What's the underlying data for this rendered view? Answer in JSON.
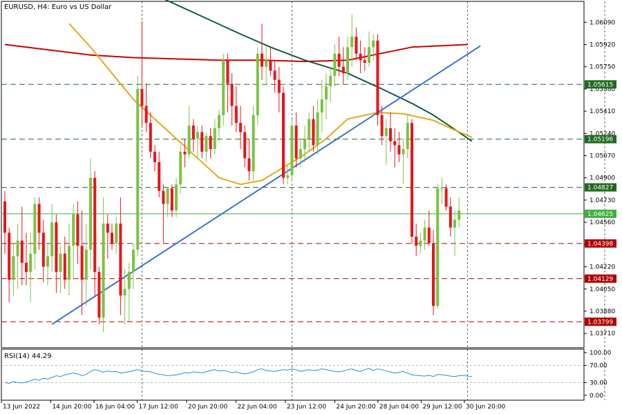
{
  "chart_data": {
    "type": "candlestick",
    "title": "EURUSD, H4:  Euro vs US Dollar",
    "price_range": [
      1.036,
      1.0625
    ],
    "price_ticks": [
      "1.06090",
      "1.05920",
      "1.05750",
      "1.05580",
      "1.05410",
      "1.05240",
      "1.05070",
      "1.04900",
      "1.04730",
      "1.04560",
      "1.04390",
      "1.04220",
      "1.04050",
      "1.03880",
      "1.03710"
    ],
    "x_ticks": [
      "13 Jun 2022",
      "14 Jun 20:00",
      "16 Jun 04:00",
      "17 Jun 12:00",
      "20 Jun 20:00",
      "22 Jun 04:00",
      "23 Jun 12:00",
      "24 Jun 20:00",
      "28 Jun 04:00",
      "29 Jun 12:00",
      "30 Jun 20:00"
    ],
    "level_lines": [
      {
        "label": "1.05615",
        "value": 1.05615,
        "style": "dashed",
        "color": "#1f6b1f"
      },
      {
        "label": "1.05196",
        "value": 1.05196,
        "style": "dashed",
        "color": "#1f6b1f"
      },
      {
        "label": "1.04827",
        "value": 1.04827,
        "style": "dashed",
        "color": "#1f6b1f"
      },
      {
        "label": "1.04625",
        "value": 1.04625,
        "style": "solid",
        "color": "#3fae3f"
      },
      {
        "label": "1.04398",
        "value": 1.04398,
        "style": "dashed",
        "color": "#b00000"
      },
      {
        "label": "1.04129",
        "value": 1.04129,
        "style": "dashed",
        "color": "#b00000"
      },
      {
        "label": "1.03799",
        "value": 1.03799,
        "style": "dashed",
        "color": "#b00000"
      }
    ],
    "candles": [
      {
        "o": 1.0472,
        "h": 1.048,
        "l": 1.0432,
        "c": 1.0448
      },
      {
        "o": 1.0448,
        "h": 1.0452,
        "l": 1.0395,
        "c": 1.0412
      },
      {
        "o": 1.0412,
        "h": 1.044,
        "l": 1.04,
        "c": 1.043
      },
      {
        "o": 1.043,
        "h": 1.0455,
        "l": 1.0405,
        "c": 1.0442
      },
      {
        "o": 1.0442,
        "h": 1.0468,
        "l": 1.0408,
        "c": 1.0425
      },
      {
        "o": 1.0425,
        "h": 1.0448,
        "l": 1.0408,
        "c": 1.0418
      },
      {
        "o": 1.0418,
        "h": 1.0448,
        "l": 1.0395,
        "c": 1.0432
      },
      {
        "o": 1.0432,
        "h": 1.0475,
        "l": 1.042,
        "c": 1.047
      },
      {
        "o": 1.047,
        "h": 1.0475,
        "l": 1.0435,
        "c": 1.0448
      },
      {
        "o": 1.0448,
        "h": 1.0458,
        "l": 1.041,
        "c": 1.0422
      },
      {
        "o": 1.0422,
        "h": 1.044,
        "l": 1.0408,
        "c": 1.043
      },
      {
        "o": 1.043,
        "h": 1.047,
        "l": 1.0418,
        "c": 1.0456
      },
      {
        "o": 1.0456,
        "h": 1.0462,
        "l": 1.0402,
        "c": 1.0418
      },
      {
        "o": 1.0418,
        "h": 1.0438,
        "l": 1.0402,
        "c": 1.0432
      },
      {
        "o": 1.0432,
        "h": 1.0445,
        "l": 1.0405,
        "c": 1.0412
      },
      {
        "o": 1.0412,
        "h": 1.0455,
        "l": 1.04,
        "c": 1.0438
      },
      {
        "o": 1.0438,
        "h": 1.047,
        "l": 1.0412,
        "c": 1.0462
      },
      {
        "o": 1.0462,
        "h": 1.0472,
        "l": 1.0424,
        "c": 1.0438
      },
      {
        "o": 1.0438,
        "h": 1.0465,
        "l": 1.0385,
        "c": 1.0412
      },
      {
        "o": 1.0412,
        "h": 1.0455,
        "l": 1.0392,
        "c": 1.0435
      },
      {
        "o": 1.0435,
        "h": 1.0505,
        "l": 1.042,
        "c": 1.049
      },
      {
        "o": 1.049,
        "h": 1.0495,
        "l": 1.04,
        "c": 1.0418
      },
      {
        "o": 1.0418,
        "h": 1.0422,
        "l": 1.0378,
        "c": 1.0383
      },
      {
        "o": 1.0383,
        "h": 1.0475,
        "l": 1.0372,
        "c": 1.0455
      },
      {
        "o": 1.0455,
        "h": 1.0462,
        "l": 1.0428,
        "c": 1.0448
      },
      {
        "o": 1.0448,
        "h": 1.0455,
        "l": 1.0435,
        "c": 1.044
      },
      {
        "o": 1.044,
        "h": 1.046,
        "l": 1.0432,
        "c": 1.0455
      },
      {
        "o": 1.0455,
        "h": 1.0475,
        "l": 1.0385,
        "c": 1.04
      },
      {
        "o": 1.04,
        "h": 1.042,
        "l": 1.0378,
        "c": 1.0405
      },
      {
        "o": 1.0405,
        "h": 1.0425,
        "l": 1.038,
        "c": 1.0418
      },
      {
        "o": 1.0418,
        "h": 1.044,
        "l": 1.0405,
        "c": 1.0435
      },
      {
        "o": 1.0435,
        "h": 1.0568,
        "l": 1.043,
        "c": 1.0558
      },
      {
        "o": 1.0558,
        "h": 1.061,
        "l": 1.053,
        "c": 1.0545
      },
      {
        "o": 1.0545,
        "h": 1.0562,
        "l": 1.0525,
        "c": 1.0532
      },
      {
        "o": 1.0532,
        "h": 1.054,
        "l": 1.0505,
        "c": 1.051
      },
      {
        "o": 1.051,
        "h": 1.0515,
        "l": 1.0495,
        "c": 1.0502
      },
      {
        "o": 1.0502,
        "h": 1.051,
        "l": 1.0475,
        "c": 1.048
      },
      {
        "o": 1.048,
        "h": 1.0485,
        "l": 1.044,
        "c": 1.047
      },
      {
        "o": 1.047,
        "h": 1.0482,
        "l": 1.046,
        "c": 1.0482
      },
      {
        "o": 1.0482,
        "h": 1.0485,
        "l": 1.046,
        "c": 1.0465
      },
      {
        "o": 1.0465,
        "h": 1.049,
        "l": 1.046,
        "c": 1.0485
      },
      {
        "o": 1.0485,
        "h": 1.0515,
        "l": 1.0478,
        "c": 1.051
      },
      {
        "o": 1.051,
        "h": 1.052,
        "l": 1.0498,
        "c": 1.0508
      },
      {
        "o": 1.0508,
        "h": 1.0545,
        "l": 1.0505,
        "c": 1.053
      },
      {
        "o": 1.053,
        "h": 1.0535,
        "l": 1.051,
        "c": 1.052
      },
      {
        "o": 1.052,
        "h": 1.053,
        "l": 1.0505,
        "c": 1.0525
      },
      {
        "o": 1.0525,
        "h": 1.053,
        "l": 1.0505,
        "c": 1.051
      },
      {
        "o": 1.051,
        "h": 1.0525,
        "l": 1.0502,
        "c": 1.0522
      },
      {
        "o": 1.0522,
        "h": 1.0528,
        "l": 1.0505,
        "c": 1.0512
      },
      {
        "o": 1.0512,
        "h": 1.0535,
        "l": 1.0508,
        "c": 1.0528
      },
      {
        "o": 1.0528,
        "h": 1.0542,
        "l": 1.0518,
        "c": 1.0538
      },
      {
        "o": 1.0538,
        "h": 1.0585,
        "l": 1.053,
        "c": 1.058
      },
      {
        "o": 1.058,
        "h": 1.0585,
        "l": 1.054,
        "c": 1.0562
      },
      {
        "o": 1.0562,
        "h": 1.057,
        "l": 1.053,
        "c": 1.0545
      },
      {
        "o": 1.0545,
        "h": 1.056,
        "l": 1.0525,
        "c": 1.0532
      },
      {
        "o": 1.0532,
        "h": 1.0545,
        "l": 1.0512,
        "c": 1.0525
      },
      {
        "o": 1.0525,
        "h": 1.053,
        "l": 1.0498,
        "c": 1.0505
      },
      {
        "o": 1.0505,
        "h": 1.052,
        "l": 1.0488,
        "c": 1.0495
      },
      {
        "o": 1.0495,
        "h": 1.0545,
        "l": 1.0488,
        "c": 1.0538
      },
      {
        "o": 1.0538,
        "h": 1.059,
        "l": 1.053,
        "c": 1.0585
      },
      {
        "o": 1.0585,
        "h": 1.0608,
        "l": 1.0565,
        "c": 1.0575
      },
      {
        "o": 1.0575,
        "h": 1.059,
        "l": 1.0562,
        "c": 1.058
      },
      {
        "o": 1.058,
        "h": 1.059,
        "l": 1.0568,
        "c": 1.0572
      },
      {
        "o": 1.0572,
        "h": 1.058,
        "l": 1.0555,
        "c": 1.0565
      },
      {
        "o": 1.0565,
        "h": 1.0575,
        "l": 1.054,
        "c": 1.0555
      },
      {
        "o": 1.0555,
        "h": 1.056,
        "l": 1.0485,
        "c": 1.049
      },
      {
        "o": 1.049,
        "h": 1.05,
        "l": 1.0485,
        "c": 1.0492
      },
      {
        "o": 1.0492,
        "h": 1.0535,
        "l": 1.0488,
        "c": 1.053
      },
      {
        "o": 1.053,
        "h": 1.054,
        "l": 1.0498,
        "c": 1.0505
      },
      {
        "o": 1.0505,
        "h": 1.052,
        "l": 1.0498,
        "c": 1.0512
      },
      {
        "o": 1.0512,
        "h": 1.053,
        "l": 1.0502,
        "c": 1.052
      },
      {
        "o": 1.052,
        "h": 1.054,
        "l": 1.051,
        "c": 1.0535
      },
      {
        "o": 1.0535,
        "h": 1.0545,
        "l": 1.051,
        "c": 1.0515
      },
      {
        "o": 1.0515,
        "h": 1.055,
        "l": 1.0508,
        "c": 1.054
      },
      {
        "o": 1.054,
        "h": 1.0565,
        "l": 1.0525,
        "c": 1.055
      },
      {
        "o": 1.055,
        "h": 1.057,
        "l": 1.0535,
        "c": 1.056
      },
      {
        "o": 1.056,
        "h": 1.0575,
        "l": 1.0548,
        "c": 1.0568
      },
      {
        "o": 1.0568,
        "h": 1.0592,
        "l": 1.056,
        "c": 1.0585
      },
      {
        "o": 1.0585,
        "h": 1.0598,
        "l": 1.0568,
        "c": 1.0575
      },
      {
        "o": 1.0575,
        "h": 1.059,
        "l": 1.0562,
        "c": 1.057
      },
      {
        "o": 1.057,
        "h": 1.0598,
        "l": 1.0565,
        "c": 1.059
      },
      {
        "o": 1.059,
        "h": 1.0615,
        "l": 1.0575,
        "c": 1.0598
      },
      {
        "o": 1.0598,
        "h": 1.0605,
        "l": 1.058,
        "c": 1.0585
      },
      {
        "o": 1.0585,
        "h": 1.0595,
        "l": 1.057,
        "c": 1.058
      },
      {
        "o": 1.058,
        "h": 1.059,
        "l": 1.0572,
        "c": 1.0578
      },
      {
        "o": 1.0578,
        "h": 1.0602,
        "l": 1.0575,
        "c": 1.059
      },
      {
        "o": 1.059,
        "h": 1.06,
        "l": 1.058,
        "c": 1.0595
      },
      {
        "o": 1.0595,
        "h": 1.06,
        "l": 1.053,
        "c": 1.0538
      },
      {
        "o": 1.0538,
        "h": 1.0545,
        "l": 1.0515,
        "c": 1.0522
      },
      {
        "o": 1.0522,
        "h": 1.0535,
        "l": 1.05,
        "c": 1.0528
      },
      {
        "o": 1.0528,
        "h": 1.054,
        "l": 1.051,
        "c": 1.0518
      },
      {
        "o": 1.0518,
        "h": 1.0528,
        "l": 1.0498,
        "c": 1.0515
      },
      {
        "o": 1.0515,
        "h": 1.0525,
        "l": 1.0502,
        "c": 1.0508
      },
      {
        "o": 1.0508,
        "h": 1.052,
        "l": 1.0485,
        "c": 1.0512
      },
      {
        "o": 1.0512,
        "h": 1.0538,
        "l": 1.0505,
        "c": 1.0532
      },
      {
        "o": 1.0532,
        "h": 1.0535,
        "l": 1.044,
        "c": 1.0445
      },
      {
        "o": 1.0445,
        "h": 1.0455,
        "l": 1.043,
        "c": 1.0438
      },
      {
        "o": 1.0438,
        "h": 1.0448,
        "l": 1.0432,
        "c": 1.0442
      },
      {
        "o": 1.0442,
        "h": 1.0458,
        "l": 1.0435,
        "c": 1.0452
      },
      {
        "o": 1.0452,
        "h": 1.0465,
        "l": 1.0438,
        "c": 1.044
      },
      {
        "o": 1.044,
        "h": 1.045,
        "l": 1.0385,
        "c": 1.0392
      },
      {
        "o": 1.0392,
        "h": 1.0485,
        "l": 1.039,
        "c": 1.0482
      },
      {
        "o": 1.0482,
        "h": 1.049,
        "l": 1.047,
        "c": 1.0482
      },
      {
        "o": 1.0482,
        "h": 1.0485,
        "l": 1.0465,
        "c": 1.0468
      },
      {
        "o": 1.0468,
        "h": 1.0475,
        "l": 1.0445,
        "c": 1.0452
      },
      {
        "o": 1.0452,
        "h": 1.0465,
        "l": 1.043,
        "c": 1.0458
      },
      {
        "o": 1.0458,
        "h": 1.0475,
        "l": 1.0452,
        "c": 1.0465
      }
    ],
    "moving_averages": [
      {
        "color": "#cc0000",
        "values": [
          [
            0,
            1.0592
          ],
          [
            10,
            1.0588
          ],
          [
            20,
            1.0584
          ],
          [
            30,
            1.0582
          ],
          [
            40,
            1.0581
          ],
          [
            50,
            1.058
          ],
          [
            60,
            1.058
          ],
          [
            70,
            1.0579
          ],
          [
            80,
            1.058
          ],
          [
            86,
            1.0584
          ],
          [
            95,
            1.059
          ],
          [
            108,
            1.0592
          ]
        ]
      },
      {
        "color": "#0b5d3b",
        "values": [
          [
            35,
            1.063
          ],
          [
            45,
            1.0615
          ],
          [
            55,
            1.06
          ],
          [
            62,
            1.059
          ],
          [
            70,
            1.058
          ],
          [
            80,
            1.057
          ],
          [
            88,
            1.0558
          ],
          [
            95,
            1.0547
          ],
          [
            100,
            1.0538
          ],
          [
            105,
            1.0527
          ],
          [
            109,
            1.0518
          ]
        ]
      },
      {
        "color": "#e6a817",
        "values": [
          [
            15,
            1.0608
          ],
          [
            20,
            1.059
          ],
          [
            25,
            1.057
          ],
          [
            30,
            1.055
          ],
          [
            35,
            1.0535
          ],
          [
            40,
            1.052
          ],
          [
            45,
            1.0505
          ],
          [
            50,
            1.049
          ],
          [
            55,
            1.0485
          ],
          [
            60,
            1.0488
          ],
          [
            65,
            1.0498
          ],
          [
            70,
            1.0508
          ],
          [
            75,
            1.052
          ],
          [
            80,
            1.0535
          ],
          [
            87,
            1.054
          ],
          [
            93,
            1.0539
          ],
          [
            100,
            1.0534
          ],
          [
            104,
            1.0528
          ],
          [
            109,
            1.0521
          ]
        ]
      }
    ],
    "trendline": {
      "color": "#3d6fcf",
      "from": [
        11,
        1.0378
      ],
      "to": [
        111,
        1.0591
      ]
    },
    "vertical_grid_at": [
      32,
      67,
      108,
      140
    ],
    "x_tick_at": [
      0,
      16,
      30,
      44,
      60,
      76,
      92,
      108,
      122,
      136,
      150
    ],
    "rsi": {
      "label": "RSI(14) 44.29",
      "ticks": [
        "100.00",
        "70.00",
        "30.00",
        "0.00"
      ],
      "levels": [
        70,
        30
      ],
      "color": "#1e90d8",
      "values": [
        30,
        28,
        32,
        30,
        29,
        31,
        34,
        38,
        35,
        40,
        38,
        42,
        46,
        44,
        48,
        50,
        52,
        50,
        46,
        49,
        56,
        60,
        58,
        54,
        57,
        55,
        56,
        52,
        54,
        55,
        58,
        60,
        57,
        56,
        55,
        52,
        49,
        48,
        46,
        47,
        48,
        50,
        53,
        52,
        55,
        54,
        53,
        55,
        58,
        60,
        57,
        58,
        56,
        53,
        55,
        52,
        50,
        52,
        55,
        60,
        62,
        58,
        57,
        56,
        58,
        60,
        59,
        62,
        60,
        56,
        58,
        60,
        58,
        59,
        62,
        60,
        58,
        56,
        55,
        57,
        60,
        62,
        58,
        56,
        60,
        63,
        58,
        62,
        60,
        57,
        55,
        52,
        54,
        56,
        52,
        48,
        47,
        46,
        45,
        47,
        44,
        49,
        48,
        47,
        45,
        44,
        46,
        47,
        45,
        44
      ]
    }
  }
}
